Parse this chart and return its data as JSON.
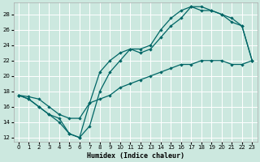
{
  "title": "",
  "xlabel": "Humidex (Indice chaleur)",
  "bg_color": "#cce8df",
  "grid_color": "#ffffff",
  "line_color": "#006666",
  "xlim": [
    -0.5,
    23.5
  ],
  "ylim": [
    11.5,
    29.5
  ],
  "xticks": [
    0,
    1,
    2,
    3,
    4,
    5,
    6,
    7,
    8,
    9,
    10,
    11,
    12,
    13,
    14,
    15,
    16,
    17,
    18,
    19,
    20,
    21,
    22,
    23
  ],
  "yticks": [
    12,
    14,
    16,
    18,
    20,
    22,
    24,
    26,
    28
  ],
  "line1_x": [
    0,
    1,
    2,
    3,
    4,
    5,
    6,
    7,
    8,
    9,
    10,
    11,
    12,
    13,
    14,
    15,
    16,
    17,
    18,
    19,
    20,
    21,
    22,
    23
  ],
  "line1_y": [
    17.5,
    17.0,
    16.0,
    15.0,
    14.0,
    12.5,
    12.0,
    13.5,
    18.0,
    20.5,
    22.0,
    23.5,
    23.0,
    23.5,
    25.0,
    26.5,
    27.5,
    29.0,
    28.5,
    28.5,
    28.0,
    27.5,
    26.5,
    22.0
  ],
  "line2_x": [
    0,
    1,
    2,
    3,
    4,
    5,
    6,
    7,
    8,
    9,
    10,
    11,
    12,
    13,
    14,
    15,
    16,
    17,
    18,
    19,
    20,
    21,
    22,
    23
  ],
  "line2_y": [
    17.5,
    17.0,
    16.0,
    15.0,
    14.5,
    12.5,
    12.0,
    16.5,
    20.5,
    22.0,
    23.0,
    23.5,
    23.5,
    24.0,
    26.0,
    27.5,
    28.5,
    29.0,
    29.0,
    28.5,
    28.0,
    27.0,
    26.5,
    22.0
  ],
  "line3_x": [
    0,
    1,
    2,
    3,
    4,
    5,
    6,
    7,
    8,
    9,
    10,
    11,
    12,
    13,
    14,
    15,
    16,
    17,
    18,
    19,
    20,
    21,
    22,
    23
  ],
  "line3_y": [
    17.5,
    17.3,
    17.0,
    16.0,
    15.0,
    14.5,
    14.5,
    16.5,
    17.0,
    17.5,
    18.5,
    19.0,
    19.5,
    20.0,
    20.5,
    21.0,
    21.5,
    21.5,
    22.0,
    22.0,
    22.0,
    21.5,
    21.5,
    22.0
  ]
}
